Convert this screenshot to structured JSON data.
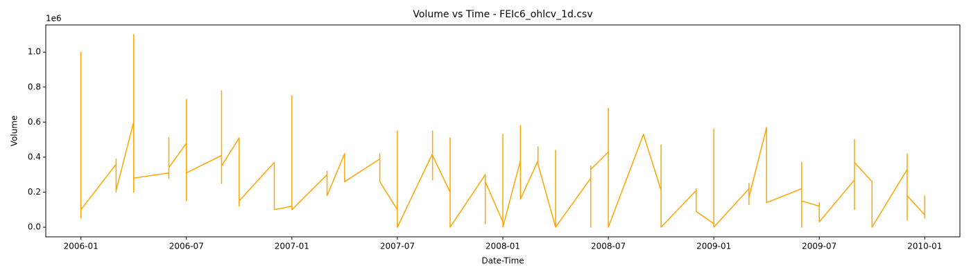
{
  "chart_data": {
    "type": "line",
    "title": "Volume vs Time - FEIc6_ohlcv_1d.csv",
    "x_label": "Date-Time",
    "y_label": "Volume",
    "y_offset_label": "1e6",
    "xlim": [
      "2005-11",
      "2010-03"
    ],
    "xticks": [
      "2006-01",
      "2006-07",
      "2007-01",
      "2007-07",
      "2008-01",
      "2008-07",
      "2009-01",
      "2009-07",
      "2010-01"
    ],
    "ylim": [
      -55000,
      1155000
    ],
    "yticks": [
      {
        "value": 0,
        "label": "0.0"
      },
      {
        "value": 200000,
        "label": "0.2"
      },
      {
        "value": 400000,
        "label": "0.4"
      },
      {
        "value": 600000,
        "label": "0.6"
      },
      {
        "value": 800000,
        "label": "0.8"
      },
      {
        "value": 1000000,
        "label": "1.0"
      }
    ],
    "grid": false,
    "x": [
      "2006-01",
      "2006-01",
      "2006-01",
      "2006-01",
      "2006-01",
      "2006-01",
      "2006-01",
      "2006-03",
      "2006-03",
      "2006-03",
      "2006-03",
      "2006-03",
      "2006-03",
      "2006-04",
      "2006-04",
      "2006-04",
      "2006-04",
      "2006-04",
      "2006-04",
      "2006-04",
      "2006-06",
      "2006-06",
      "2006-06",
      "2006-06",
      "2006-06",
      "2006-07",
      "2006-07",
      "2006-07",
      "2006-07",
      "2006-07",
      "2006-07",
      "2006-09",
      "2006-09",
      "2006-09",
      "2006-09",
      "2006-09",
      "2006-10",
      "2006-10",
      "2006-10",
      "2006-10",
      "2006-10",
      "2006-10",
      "2006-12",
      "2006-12",
      "2006-12",
      "2007-01",
      "2007-01",
      "2007-01",
      "2007-01",
      "2007-01",
      "2007-01",
      "2007-03",
      "2007-03",
      "2007-03",
      "2007-03",
      "2007-04",
      "2007-04",
      "2007-06",
      "2007-06",
      "2007-06",
      "2007-06",
      "2007-07",
      "2007-07",
      "2007-07",
      "2007-07",
      "2007-07",
      "2007-07",
      "2007-07",
      "2007-07",
      "2007-07",
      "2007-07",
      "2007-09",
      "2007-09",
      "2007-09",
      "2007-09",
      "2007-10",
      "2007-10",
      "2007-10",
      "2007-10",
      "2007-10",
      "2007-10",
      "2007-12",
      "2007-12",
      "2007-12",
      "2007-12",
      "2008-01",
      "2008-01",
      "2008-01",
      "2008-01",
      "2008-01",
      "2008-01",
      "2008-01",
      "2008-02",
      "2008-02",
      "2008-02",
      "2008-03",
      "2008-03",
      "2008-03",
      "2008-04",
      "2008-04",
      "2008-04",
      "2008-04",
      "2008-04",
      "2008-04",
      "2008-06",
      "2008-06",
      "2008-06",
      "2008-06",
      "2008-07",
      "2008-07",
      "2008-07",
      "2008-07",
      "2008-07",
      "2008-07",
      "2008-09",
      "2008-10",
      "2008-10",
      "2008-10",
      "2008-10",
      "2008-10",
      "2008-10",
      "2008-10",
      "2008-10",
      "2008-10",
      "2008-12",
      "2008-12",
      "2008-12",
      "2009-01",
      "2009-01",
      "2009-01",
      "2009-01",
      "2009-01",
      "2009-01",
      "2009-01",
      "2009-01",
      "2009-03",
      "2009-03",
      "2009-03",
      "2009-03",
      "2009-03",
      "2009-04",
      "2009-04",
      "2009-06",
      "2009-06",
      "2009-06",
      "2009-06",
      "2009-06",
      "2009-06",
      "2009-06",
      "2009-06",
      "2009-06",
      "2009-07",
      "2009-07",
      "2009-07",
      "2009-09",
      "2009-09",
      "2009-09",
      "2009-09",
      "2009-09",
      "2009-09",
      "2009-09",
      "2009-09",
      "2009-09",
      "2009-09",
      "2009-10",
      "2009-10",
      "2009-12",
      "2009-12",
      "2009-12",
      "2009-12",
      "2009-12",
      "2009-12",
      "2010-01",
      "2010-01",
      "2010-01"
    ],
    "series": [
      {
        "color": "#ffa500",
        "values": [
          50000,
          1000000,
          350000,
          250000,
          440000,
          250000,
          100000,
          360000,
          260000,
          390000,
          280000,
          200000,
          210000,
          600000,
          230000,
          330000,
          1100000,
          220000,
          200000,
          280000,
          310000,
          280000,
          450000,
          510000,
          340000,
          480000,
          150000,
          730000,
          260000,
          500000,
          310000,
          410000,
          250000,
          680000,
          780000,
          350000,
          510000,
          210000,
          470000,
          120000,
          410000,
          150000,
          370000,
          170000,
          100000,
          120000,
          250000,
          150000,
          750000,
          280000,
          100000,
          300000,
          210000,
          320000,
          180000,
          420000,
          260000,
          390000,
          420000,
          270000,
          260000,
          100000,
          330000,
          0,
          390000,
          550000,
          200000,
          530000,
          0,
          190000,
          0,
          420000,
          550000,
          270000,
          410000,
          200000,
          410000,
          100000,
          510000,
          360000,
          0,
          300000,
          170000,
          20000,
          260000,
          30000,
          290000,
          200000,
          530000,
          340000,
          480000,
          0,
          380000,
          580000,
          160000,
          380000,
          460000,
          360000,
          0,
          440000,
          260000,
          410000,
          310000,
          0,
          280000,
          350000,
          0,
          330000,
          430000,
          680000,
          180000,
          370000,
          280000,
          0,
          530000,
          210000,
          260000,
          0,
          400000,
          300000,
          470000,
          310000,
          240000,
          0,
          210000,
          220000,
          90000,
          20000,
          100000,
          30000,
          270000,
          210000,
          560000,
          170000,
          0,
          220000,
          250000,
          130000,
          230000,
          170000,
          570000,
          140000,
          220000,
          350000,
          170000,
          370000,
          240000,
          160000,
          370000,
          0,
          150000,
          120000,
          140000,
          30000,
          270000,
          180000,
          200000,
          240000,
          100000,
          430000,
          110000,
          500000,
          160000,
          370000,
          260000,
          0,
          330000,
          420000,
          170000,
          150000,
          40000,
          180000,
          70000,
          180000,
          50000
        ]
      }
    ]
  }
}
